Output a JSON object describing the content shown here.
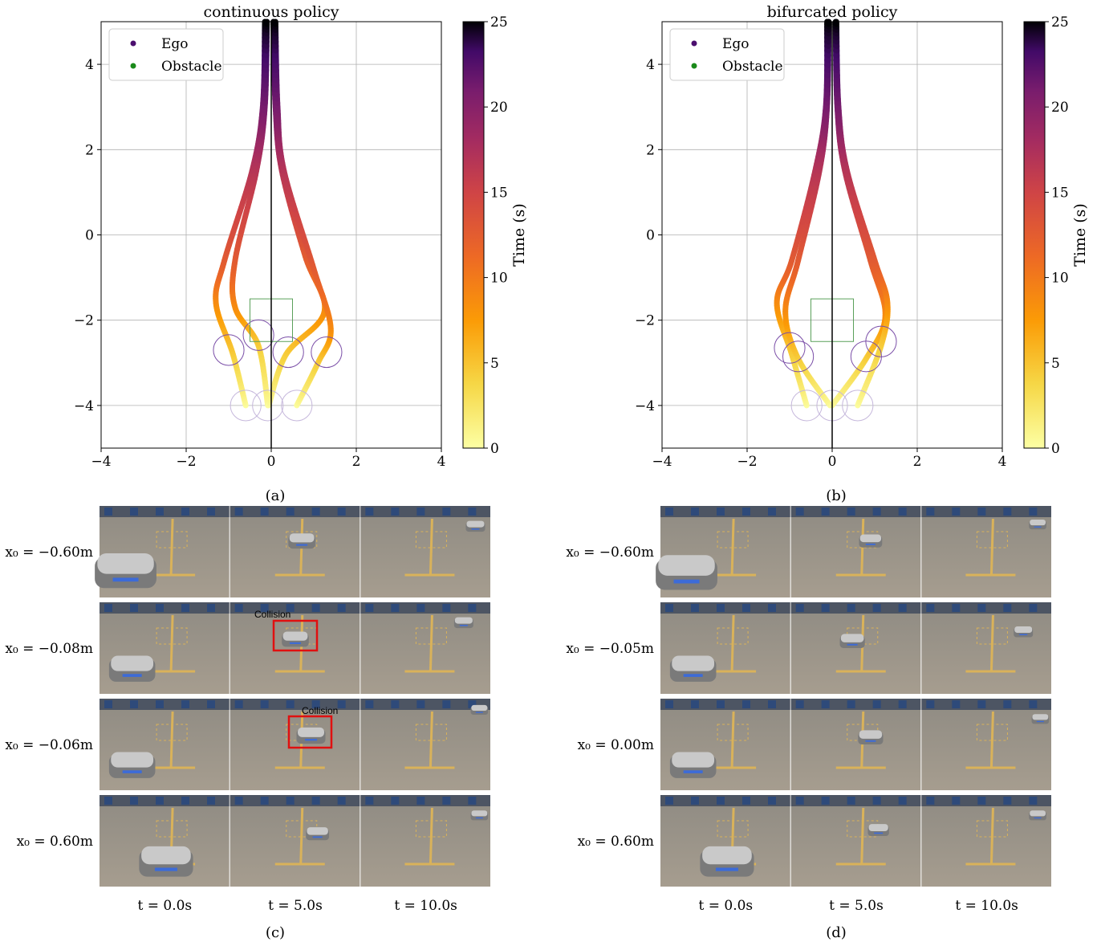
{
  "chart_data": [
    {
      "type": "line",
      "panel": "(a)",
      "title": "continuous policy",
      "xlabel": "",
      "ylabel": "",
      "xlim": [
        -4,
        4
      ],
      "ylim": [
        -5,
        5
      ],
      "xticks": [
        -4,
        -2,
        0,
        2,
        4
      ],
      "yticks": [
        -4,
        -2,
        0,
        2,
        4
      ],
      "grid": true,
      "legend": {
        "placement": "top-left",
        "entries": [
          {
            "label": "Ego",
            "color": "#4b0f6e"
          },
          {
            "label": "Obstacle",
            "color": "#1a8a1a"
          }
        ]
      },
      "colorbar": {
        "label": "Time (s)",
        "min": 0,
        "max": 25,
        "ticks": [
          0,
          5,
          10,
          15,
          20,
          25
        ],
        "colormap": "inferno_r"
      },
      "obstacle_box": {
        "x0": -0.5,
        "x1": 0.5,
        "y0": -2.5,
        "y1": -1.5
      },
      "ego_circles_start": [
        [
          -0.6,
          -4.0
        ],
        [
          -0.08,
          -4.0
        ],
        [
          0.6,
          -4.0
        ]
      ],
      "ego_circles_mid": [
        [
          -1.0,
          -2.7
        ],
        [
          -0.3,
          -2.35
        ],
        [
          0.4,
          -2.75
        ],
        [
          1.3,
          -2.75
        ]
      ],
      "series": [
        {
          "name": "x0=-0.60",
          "t": [
            0,
            4,
            8,
            12,
            16,
            20,
            25
          ],
          "x": [
            -0.6,
            -0.9,
            -1.3,
            -1.1,
            -0.45,
            -0.2,
            -0.15
          ],
          "y": [
            -4.0,
            -2.8,
            -1.6,
            -0.6,
            1.5,
            3.0,
            5.0
          ]
        },
        {
          "name": "x0=-0.08",
          "t": [
            0,
            4,
            8,
            12,
            16,
            20,
            25
          ],
          "x": [
            -0.08,
            -0.3,
            -0.85,
            -0.85,
            -0.35,
            -0.15,
            -0.1
          ],
          "y": [
            -4.0,
            -2.6,
            -1.7,
            -0.6,
            1.5,
            3.0,
            5.0
          ]
        },
        {
          "name": "x0=-0.06",
          "t": [
            0,
            4,
            8,
            12,
            16,
            20,
            25
          ],
          "x": [
            -0.06,
            0.35,
            1.25,
            0.8,
            0.25,
            0.1,
            0.05
          ],
          "y": [
            -4.0,
            -2.8,
            -1.8,
            -0.5,
            1.5,
            3.0,
            5.0
          ]
        },
        {
          "name": "x0=0.60",
          "t": [
            0,
            4,
            8,
            12,
            16,
            20,
            25
          ],
          "x": [
            0.6,
            1.1,
            1.4,
            1.0,
            0.3,
            0.15,
            0.1
          ],
          "y": [
            -4.0,
            -3.0,
            -2.2,
            -0.8,
            1.5,
            3.0,
            5.0
          ]
        }
      ]
    },
    {
      "type": "line",
      "panel": "(b)",
      "title": "bifurcated policy",
      "xlabel": "",
      "ylabel": "",
      "xlim": [
        -4,
        4
      ],
      "ylim": [
        -5,
        5
      ],
      "xticks": [
        -4,
        -2,
        0,
        2,
        4
      ],
      "yticks": [
        -4,
        -2,
        0,
        2,
        4
      ],
      "grid": true,
      "legend": {
        "placement": "top-left",
        "entries": [
          {
            "label": "Ego",
            "color": "#4b0f6e"
          },
          {
            "label": "Obstacle",
            "color": "#1a8a1a"
          }
        ]
      },
      "colorbar": {
        "label": "Time (s)",
        "min": 0,
        "max": 25,
        "ticks": [
          0,
          5,
          10,
          15,
          20,
          25
        ],
        "colormap": "inferno_r"
      },
      "obstacle_box": {
        "x0": -0.5,
        "x1": 0.5,
        "y0": -2.5,
        "y1": -1.5
      },
      "ego_circles_start": [
        [
          -0.6,
          -4.0
        ],
        [
          0.0,
          -4.0
        ],
        [
          0.6,
          -4.0
        ]
      ],
      "ego_circles_mid": [
        [
          -1.0,
          -2.65
        ],
        [
          -0.8,
          -2.85
        ],
        [
          0.8,
          -2.85
        ],
        [
          1.15,
          -2.5
        ]
      ],
      "series": [
        {
          "name": "x0=-0.60",
          "t": [
            0,
            4,
            8,
            12,
            16,
            20,
            25
          ],
          "x": [
            -0.6,
            -0.95,
            -1.3,
            -0.95,
            -0.4,
            -0.15,
            -0.12
          ],
          "y": [
            -4.0,
            -2.8,
            -1.6,
            -0.6,
            1.5,
            3.0,
            5.0
          ]
        },
        {
          "name": "x0=-0.05",
          "t": [
            0,
            4,
            8,
            12,
            16,
            20,
            25
          ],
          "x": [
            -0.05,
            -0.8,
            -1.1,
            -0.8,
            -0.3,
            -0.12,
            -0.08
          ],
          "y": [
            -4.0,
            -2.9,
            -1.8,
            -0.6,
            1.5,
            3.0,
            5.0
          ]
        },
        {
          "name": "x0=0.00",
          "t": [
            0,
            4,
            8,
            12,
            16,
            20,
            25
          ],
          "x": [
            0.0,
            0.8,
            1.25,
            0.9,
            0.3,
            0.12,
            0.08
          ],
          "y": [
            -4.0,
            -2.9,
            -1.9,
            -0.6,
            1.5,
            3.0,
            5.0
          ]
        },
        {
          "name": "x0=0.60",
          "t": [
            0,
            4,
            8,
            12,
            16,
            20,
            25
          ],
          "x": [
            0.6,
            1.15,
            1.3,
            1.0,
            0.35,
            0.15,
            0.1
          ],
          "y": [
            -4.0,
            -2.6,
            -1.6,
            -0.6,
            1.5,
            3.0,
            5.0
          ]
        }
      ]
    }
  ],
  "panel_a_caption": "(a)",
  "panel_b_caption": "(b)",
  "panel_c_caption": "(c)",
  "panel_d_caption": "(d)",
  "photo_panels": [
    {
      "caption": "(c)",
      "row_labels": [
        "x₀ = −0.60m",
        "x₀ = −0.08m",
        "x₀ = −0.06m",
        "x₀ =    0.60m"
      ],
      "time_labels": [
        "t = 0.0s",
        "t = 5.0s",
        "t = 10.0s"
      ],
      "collision_label": "Collision"
    },
    {
      "caption": "(d)",
      "row_labels": [
        "x₀ = −0.60m",
        "x₀ = −0.05m",
        "x₀ =    0.00m",
        "x₀ =    0.60m"
      ],
      "time_labels": [
        "t = 0.0s",
        "t = 5.0s",
        "t = 10.0s"
      ]
    }
  ]
}
